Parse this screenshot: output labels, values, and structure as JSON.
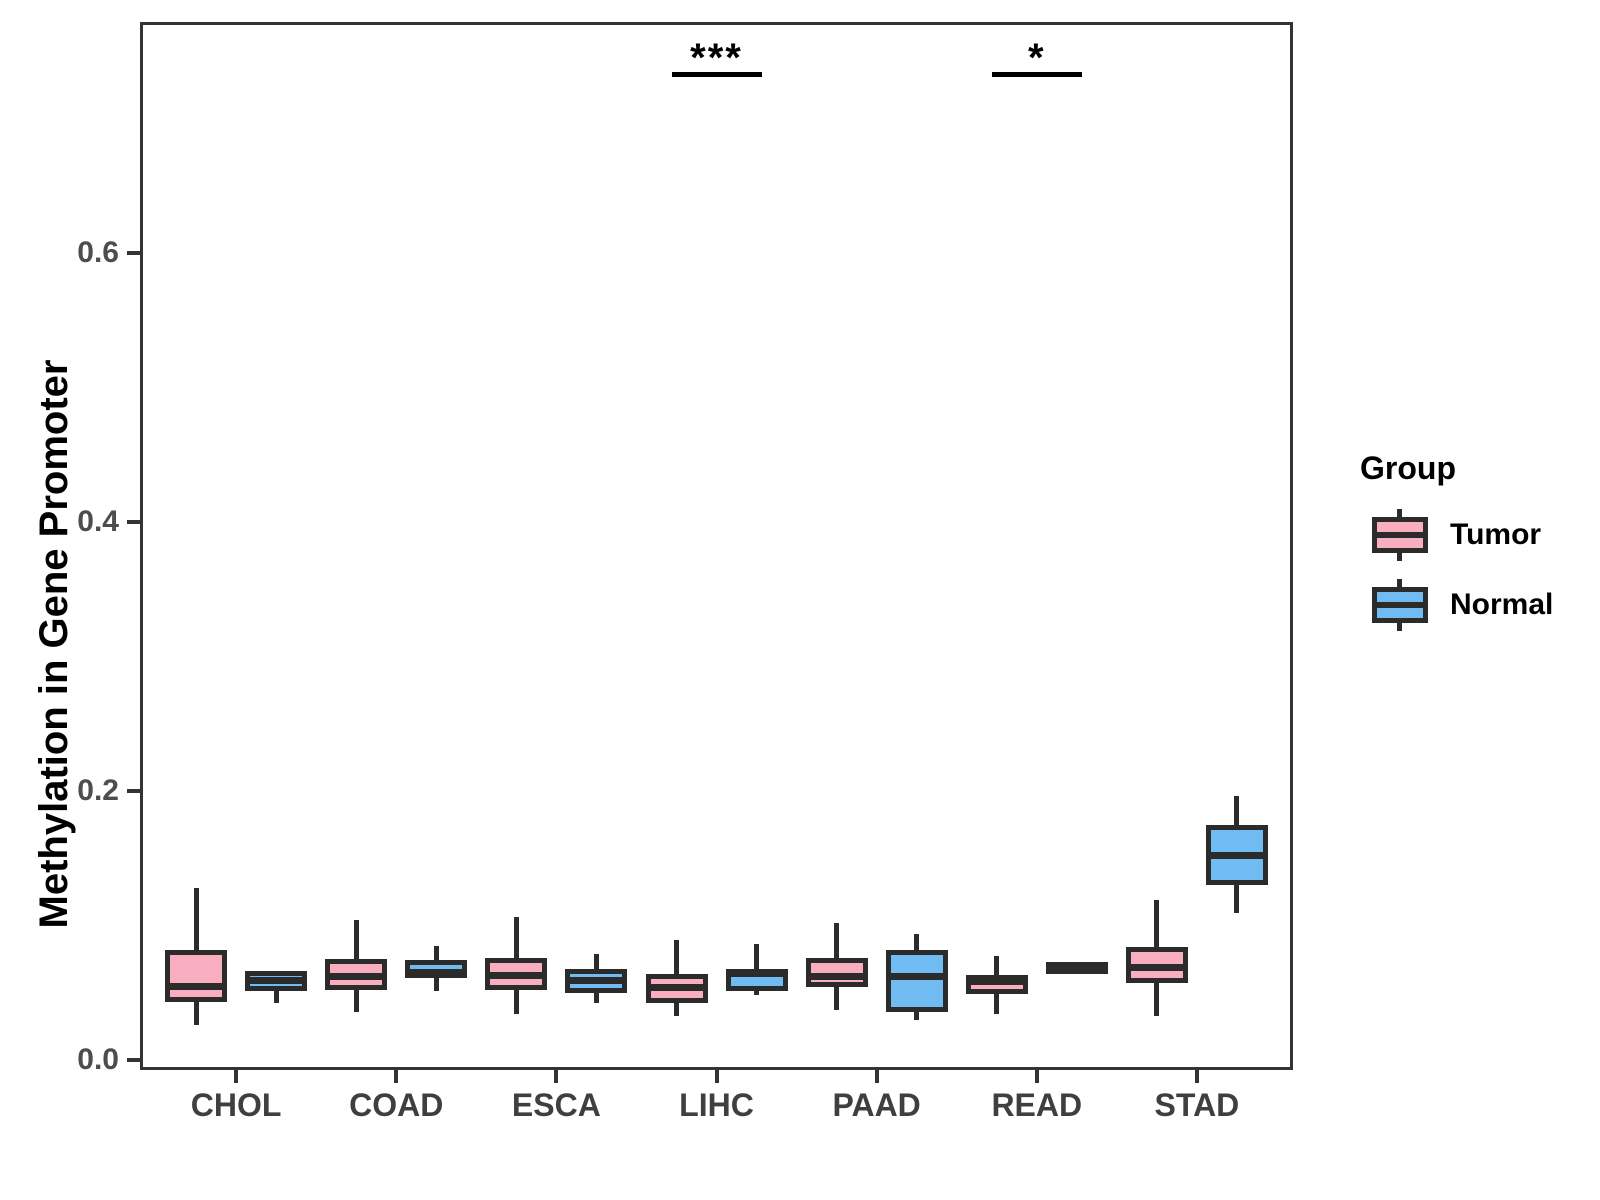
{
  "y_axis": {
    "title": "Methylation in Gene Promoter",
    "tick_labels": [
      "0.0",
      "0.2",
      "0.4",
      "0.6"
    ],
    "ticks": [
      0.0,
      0.2,
      0.4,
      0.6
    ]
  },
  "x_axis": {
    "categories": [
      "CHOL",
      "COAD",
      "ESCA",
      "LIHC",
      "PAAD",
      "READ",
      "STAD"
    ]
  },
  "legend": {
    "title": "Group",
    "items": [
      {
        "label": "Tumor",
        "color": "#F9AEC0"
      },
      {
        "label": "Normal",
        "color": "#6FBBF2"
      }
    ]
  },
  "annotations": [
    {
      "category": "LIHC",
      "label": "***"
    },
    {
      "category": "READ",
      "label": "*"
    }
  ],
  "chart_data": {
    "type": "boxplot",
    "title": "",
    "xlabel": "",
    "ylabel": "Methylation in Gene Promoter",
    "ylim": [
      -0.007,
      0.772
    ],
    "grid": false,
    "legend_position": "right",
    "categories": [
      "CHOL",
      "COAD",
      "ESCA",
      "LIHC",
      "PAAD",
      "READ",
      "STAD"
    ],
    "series": [
      {
        "name": "Tumor",
        "fill_color": "#F9AEC0",
        "stroke_color": "#2b2b2b",
        "boxes": [
          {
            "category": "CHOL",
            "whisker_low": 0.026,
            "q1": 0.043,
            "median": 0.055,
            "q3": 0.082,
            "whisker_high": 0.128
          },
          {
            "category": "COAD",
            "whisker_low": 0.036,
            "q1": 0.052,
            "median": 0.062,
            "q3": 0.075,
            "whisker_high": 0.104
          },
          {
            "category": "ESCA",
            "whisker_low": 0.034,
            "q1": 0.052,
            "median": 0.063,
            "q3": 0.076,
            "whisker_high": 0.106
          },
          {
            "category": "LIHC",
            "whisker_low": 0.033,
            "q1": 0.042,
            "median": 0.054,
            "q3": 0.064,
            "whisker_high": 0.089
          },
          {
            "category": "PAAD",
            "whisker_low": 0.037,
            "q1": 0.054,
            "median": 0.062,
            "q3": 0.076,
            "whisker_high": 0.102
          },
          {
            "category": "READ",
            "whisker_low": 0.034,
            "q1": 0.049,
            "median": 0.058,
            "q3": 0.063,
            "whisker_high": 0.077
          },
          {
            "category": "STAD",
            "whisker_low": 0.033,
            "q1": 0.057,
            "median": 0.069,
            "q3": 0.084,
            "whisker_high": 0.119
          }
        ]
      },
      {
        "name": "Normal",
        "fill_color": "#6FBBF2",
        "stroke_color": "#2b2b2b",
        "boxes": [
          {
            "category": "CHOL",
            "whisker_low": 0.042,
            "q1": 0.051,
            "median": 0.059,
            "q3": 0.066,
            "whisker_high": 0.066
          },
          {
            "category": "COAD",
            "whisker_low": 0.051,
            "q1": 0.061,
            "median": 0.065,
            "q3": 0.074,
            "whisker_high": 0.085
          },
          {
            "category": "ESCA",
            "whisker_low": 0.042,
            "q1": 0.05,
            "median": 0.059,
            "q3": 0.068,
            "whisker_high": 0.079
          },
          {
            "category": "LIHC",
            "whisker_low": 0.048,
            "q1": 0.051,
            "median": 0.064,
            "q3": 0.068,
            "whisker_high": 0.086
          },
          {
            "category": "PAAD",
            "whisker_low": 0.03,
            "q1": 0.036,
            "median": 0.062,
            "q3": 0.082,
            "whisker_high": 0.094
          },
          {
            "category": "READ",
            "whisker_low": 0.064,
            "q1": 0.066,
            "median": 0.07,
            "q3": 0.073,
            "whisker_high": 0.073
          },
          {
            "category": "STAD",
            "whisker_low": 0.109,
            "q1": 0.13,
            "median": 0.152,
            "q3": 0.175,
            "whisker_high": 0.196
          }
        ]
      }
    ],
    "significance": [
      {
        "category": "LIHC",
        "label": "***"
      },
      {
        "category": "READ",
        "label": "*"
      }
    ]
  }
}
